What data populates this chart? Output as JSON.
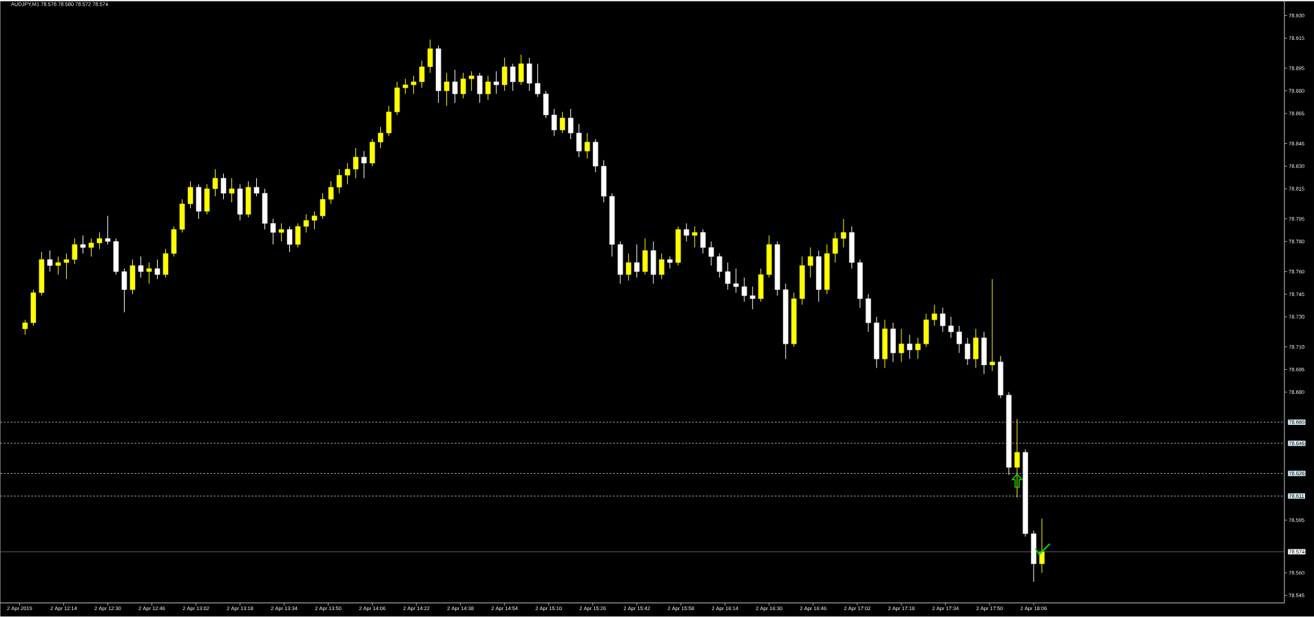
{
  "chart_data": {
    "type": "candlestick",
    "title": "AUDJPY,M1 78.578 78.580 78.572 78.574",
    "x": [
      "2019-04-02T12:00",
      "2019-04-02T12:03",
      "2019-04-02T12:06",
      "2019-04-02T12:09",
      "2019-04-02T12:12",
      "2019-04-02T12:15",
      "2019-04-02T12:18",
      "2019-04-02T12:21",
      "2019-04-02T12:24",
      "2019-04-02T12:27",
      "2019-04-02T12:30",
      "2019-04-02T12:33",
      "2019-04-02T12:36",
      "2019-04-02T12:39",
      "2019-04-02T12:42",
      "2019-04-02T12:45",
      "2019-04-02T12:48",
      "2019-04-02T12:51",
      "2019-04-02T12:54",
      "2019-04-02T12:57",
      "2019-04-02T13:00",
      "2019-04-02T13:03",
      "2019-04-02T13:06",
      "2019-04-02T13:09",
      "2019-04-02T13:12",
      "2019-04-02T13:15",
      "2019-04-02T13:18",
      "2019-04-02T13:21",
      "2019-04-02T13:24",
      "2019-04-02T13:27",
      "2019-04-02T13:30",
      "2019-04-02T13:33",
      "2019-04-02T13:36",
      "2019-04-02T13:39",
      "2019-04-02T13:42",
      "2019-04-02T13:45",
      "2019-04-02T13:48",
      "2019-04-02T13:51",
      "2019-04-02T13:54",
      "2019-04-02T13:57",
      "2019-04-02T14:00",
      "2019-04-02T14:03",
      "2019-04-02T14:06",
      "2019-04-02T14:09",
      "2019-04-02T14:12",
      "2019-04-02T14:15",
      "2019-04-02T14:18",
      "2019-04-02T14:21",
      "2019-04-02T14:24",
      "2019-04-02T14:27",
      "2019-04-02T14:30",
      "2019-04-02T14:33",
      "2019-04-02T14:36",
      "2019-04-02T14:39",
      "2019-04-02T14:42",
      "2019-04-02T14:45",
      "2019-04-02T14:48",
      "2019-04-02T14:51",
      "2019-04-02T14:54",
      "2019-04-02T14:57",
      "2019-04-02T15:00",
      "2019-04-02T15:03",
      "2019-04-02T15:06",
      "2019-04-02T15:09",
      "2019-04-02T15:12",
      "2019-04-02T15:15",
      "2019-04-02T15:18",
      "2019-04-02T15:21",
      "2019-04-02T15:24",
      "2019-04-02T15:27",
      "2019-04-02T15:30",
      "2019-04-02T15:33",
      "2019-04-02T15:36",
      "2019-04-02T15:39",
      "2019-04-02T15:42",
      "2019-04-02T15:45",
      "2019-04-02T15:48",
      "2019-04-02T15:51",
      "2019-04-02T15:54",
      "2019-04-02T15:57",
      "2019-04-02T16:00",
      "2019-04-02T16:03",
      "2019-04-02T16:06",
      "2019-04-02T16:09",
      "2019-04-02T16:12",
      "2019-04-02T16:15",
      "2019-04-02T16:18",
      "2019-04-02T16:21",
      "2019-04-02T16:24",
      "2019-04-02T16:27",
      "2019-04-02T16:30",
      "2019-04-02T16:33",
      "2019-04-02T16:36",
      "2019-04-02T16:39",
      "2019-04-02T16:42",
      "2019-04-02T16:45",
      "2019-04-02T16:48",
      "2019-04-02T16:51",
      "2019-04-02T16:54",
      "2019-04-02T16:57",
      "2019-04-02T17:00",
      "2019-04-02T17:03",
      "2019-04-02T17:06",
      "2019-04-02T17:09",
      "2019-04-02T17:12",
      "2019-04-02T17:15",
      "2019-04-02T17:18",
      "2019-04-02T17:21",
      "2019-04-02T17:24",
      "2019-04-02T17:27",
      "2019-04-02T17:30",
      "2019-04-02T17:33",
      "2019-04-02T17:36",
      "2019-04-02T17:39",
      "2019-04-02T17:42",
      "2019-04-02T17:45",
      "2019-04-02T17:48",
      "2019-04-02T17:51",
      "2019-04-02T17:54",
      "2019-04-02T17:57",
      "2019-04-02T18:00",
      "2019-04-02T18:03",
      "2019-04-02T18:06",
      "2019-04-02T18:09"
    ],
    "ohlc": [
      [
        78.722,
        78.728,
        78.718,
        78.726
      ],
      [
        78.726,
        78.748,
        78.724,
        78.746
      ],
      [
        78.746,
        78.773,
        78.744,
        78.768
      ],
      [
        78.768,
        78.774,
        78.76,
        78.764
      ],
      [
        78.764,
        78.77,
        78.758,
        78.766
      ],
      [
        78.766,
        78.772,
        78.755,
        78.768
      ],
      [
        78.768,
        78.782,
        78.765,
        78.778
      ],
      [
        78.778,
        78.784,
        78.772,
        78.776
      ],
      [
        78.776,
        78.782,
        78.77,
        78.779
      ],
      [
        78.779,
        78.786,
        78.775,
        78.782
      ],
      [
        78.782,
        78.797,
        78.778,
        78.78
      ],
      [
        78.78,
        78.782,
        78.758,
        78.76
      ],
      [
        78.76,
        78.762,
        78.733,
        78.748
      ],
      [
        78.748,
        78.768,
        78.745,
        78.764
      ],
      [
        78.764,
        78.77,
        78.756,
        78.76
      ],
      [
        78.76,
        78.766,
        78.752,
        78.762
      ],
      [
        78.762,
        78.768,
        78.755,
        78.758
      ],
      [
        78.758,
        78.775,
        78.756,
        78.772
      ],
      [
        78.772,
        78.79,
        78.77,
        78.788
      ],
      [
        78.788,
        78.808,
        78.786,
        78.805
      ],
      [
        78.805,
        78.82,
        78.802,
        78.816
      ],
      [
        78.816,
        78.818,
        78.795,
        78.8
      ],
      [
        78.8,
        78.818,
        78.798,
        78.815
      ],
      [
        78.815,
        78.828,
        78.81,
        78.822
      ],
      [
        78.822,
        78.825,
        78.808,
        78.812
      ],
      [
        78.812,
        78.822,
        78.806,
        78.815
      ],
      [
        78.815,
        78.818,
        78.794,
        78.798
      ],
      [
        78.798,
        78.82,
        78.796,
        78.816
      ],
      [
        78.816,
        78.822,
        78.81,
        78.812
      ],
      [
        78.812,
        78.815,
        78.788,
        78.792
      ],
      [
        78.792,
        78.795,
        78.778,
        78.786
      ],
      [
        78.786,
        78.792,
        78.78,
        78.788
      ],
      [
        78.788,
        78.79,
        78.773,
        78.778
      ],
      [
        78.778,
        78.792,
        78.776,
        78.79
      ],
      [
        78.79,
        78.798,
        78.786,
        78.794
      ],
      [
        78.794,
        78.8,
        78.788,
        78.797
      ],
      [
        78.797,
        78.812,
        78.795,
        78.808
      ],
      [
        78.808,
        78.82,
        78.805,
        78.816
      ],
      [
        78.816,
        78.828,
        78.812,
        78.824
      ],
      [
        78.824,
        78.832,
        78.818,
        78.828
      ],
      [
        78.828,
        78.842,
        78.822,
        78.836
      ],
      [
        78.836,
        78.84,
        78.822,
        78.832
      ],
      [
        78.832,
        78.848,
        78.83,
        78.846
      ],
      [
        78.846,
        78.856,
        78.842,
        78.852
      ],
      [
        78.852,
        78.87,
        78.85,
        78.866
      ],
      [
        78.866,
        78.886,
        78.864,
        78.882
      ],
      [
        78.882,
        78.888,
        78.878,
        78.884
      ],
      [
        78.884,
        78.89,
        78.878,
        78.886
      ],
      [
        78.886,
        78.9,
        78.882,
        78.896
      ],
      [
        78.896,
        78.914,
        78.892,
        78.908
      ],
      [
        78.908,
        78.91,
        78.872,
        78.88
      ],
      [
        78.88,
        78.892,
        78.87,
        78.886
      ],
      [
        78.886,
        78.894,
        78.872,
        78.878
      ],
      [
        78.878,
        78.892,
        78.875,
        78.888
      ],
      [
        78.888,
        78.893,
        78.88,
        78.89
      ],
      [
        78.89,
        78.892,
        78.872,
        78.878
      ],
      [
        78.878,
        78.89,
        78.874,
        78.886
      ],
      [
        78.886,
        78.893,
        78.878,
        78.884
      ],
      [
        78.884,
        78.902,
        78.88,
        78.896
      ],
      [
        78.896,
        78.898,
        78.88,
        78.886
      ],
      [
        78.886,
        78.904,
        78.884,
        78.898
      ],
      [
        78.898,
        78.902,
        78.88,
        78.885
      ],
      [
        78.885,
        78.898,
        78.876,
        78.878
      ],
      [
        78.878,
        78.88,
        78.862,
        78.864
      ],
      [
        78.864,
        78.868,
        78.85,
        78.854
      ],
      [
        78.854,
        78.866,
        78.852,
        78.862
      ],
      [
        78.862,
        78.868,
        78.848,
        78.852
      ],
      [
        78.852,
        78.858,
        78.836,
        78.84
      ],
      [
        78.84,
        78.852,
        78.835,
        78.846
      ],
      [
        78.846,
        78.848,
        78.826,
        78.83
      ],
      [
        78.83,
        78.834,
        78.806,
        78.81
      ],
      [
        78.81,
        78.812,
        78.77,
        78.778
      ],
      [
        78.778,
        78.78,
        78.752,
        78.758
      ],
      [
        78.758,
        78.772,
        78.754,
        78.766
      ],
      [
        78.766,
        78.778,
        78.756,
        78.76
      ],
      [
        78.76,
        78.782,
        78.758,
        78.774
      ],
      [
        78.774,
        78.78,
        78.752,
        78.758
      ],
      [
        78.758,
        78.772,
        78.755,
        78.768
      ],
      [
        78.768,
        78.77,
        78.762,
        78.766
      ],
      [
        78.766,
        78.79,
        78.764,
        78.788
      ],
      [
        78.788,
        78.792,
        78.78,
        78.784
      ],
      [
        78.784,
        78.79,
        78.776,
        78.786
      ],
      [
        78.786,
        78.788,
        78.772,
        78.776
      ],
      [
        78.776,
        78.78,
        78.764,
        78.77
      ],
      [
        78.77,
        78.772,
        78.756,
        78.76
      ],
      [
        78.76,
        78.766,
        78.748,
        78.752
      ],
      [
        78.752,
        78.762,
        78.746,
        78.75
      ],
      [
        78.75,
        78.756,
        78.74,
        78.744
      ],
      [
        78.744,
        78.75,
        78.735,
        78.742
      ],
      [
        78.742,
        78.762,
        78.74,
        78.758
      ],
      [
        78.758,
        78.784,
        78.756,
        78.778
      ],
      [
        78.778,
        78.78,
        78.744,
        78.748
      ],
      [
        78.748,
        78.752,
        78.702,
        78.712
      ],
      [
        78.712,
        78.746,
        78.71,
        78.742
      ],
      [
        78.742,
        78.77,
        78.738,
        78.764
      ],
      [
        78.764,
        78.776,
        78.756,
        78.77
      ],
      [
        78.77,
        78.774,
        78.74,
        78.748
      ],
      [
        78.748,
        78.778,
        78.745,
        78.772
      ],
      [
        78.772,
        78.786,
        78.766,
        78.782
      ],
      [
        78.782,
        78.795,
        78.776,
        78.786
      ],
      [
        78.786,
        78.79,
        78.762,
        78.766
      ],
      [
        78.766,
        78.768,
        78.736,
        78.742
      ],
      [
        78.742,
        78.745,
        78.72,
        78.726
      ],
      [
        78.726,
        78.73,
        78.696,
        78.702
      ],
      [
        78.702,
        78.728,
        78.696,
        78.722
      ],
      [
        78.722,
        78.726,
        78.7,
        78.706
      ],
      [
        78.706,
        78.722,
        78.7,
        78.712
      ],
      [
        78.712,
        78.718,
        78.702,
        78.708
      ],
      [
        78.708,
        78.716,
        78.702,
        78.712
      ],
      [
        78.712,
        78.732,
        78.71,
        78.728
      ],
      [
        78.728,
        78.738,
        78.724,
        78.732
      ],
      [
        78.732,
        78.736,
        78.72,
        78.724
      ],
      [
        78.724,
        78.73,
        78.716,
        78.72
      ],
      [
        78.72,
        78.724,
        78.706,
        78.712
      ],
      [
        78.712,
        78.716,
        78.698,
        78.702
      ],
      [
        78.702,
        78.722,
        78.696,
        78.716
      ],
      [
        78.716,
        78.72,
        78.692,
        78.698
      ],
      [
        78.698,
        78.755,
        78.694,
        78.7
      ],
      [
        78.7,
        78.704,
        78.676,
        78.678
      ],
      [
        78.678,
        78.68,
        78.625,
        78.63
      ],
      [
        78.63,
        78.662,
        78.61,
        78.64
      ],
      [
        78.64,
        78.642,
        78.584,
        78.586
      ],
      [
        78.586,
        78.588,
        78.554,
        78.566
      ],
      [
        78.566,
        78.596,
        78.56,
        78.574
      ]
    ],
    "colors": [
      "#ffff00",
      "#ffff00",
      "#ffff00",
      "#ffffff",
      "#ffff00",
      "#ffff00",
      "#ffff00",
      "#ffffff",
      "#ffff00",
      "#ffff00",
      "#ffffff",
      "#ffffff",
      "#ffffff",
      "#ffff00",
      "#ffffff",
      "#ffff00",
      "#ffffff",
      "#ffff00",
      "#ffff00",
      "#ffff00",
      "#ffff00",
      "#ffffff",
      "#ffff00",
      "#ffff00",
      "#ffffff",
      "#ffff00",
      "#ffffff",
      "#ffff00",
      "#ffffff",
      "#ffffff",
      "#ffffff",
      "#ffff00",
      "#ffffff",
      "#ffff00",
      "#ffff00",
      "#ffff00",
      "#ffff00",
      "#ffff00",
      "#ffff00",
      "#ffff00",
      "#ffff00",
      "#ffffff",
      "#ffff00",
      "#ffff00",
      "#ffff00",
      "#ffff00",
      "#ffff00",
      "#ffff00",
      "#ffff00",
      "#ffff00",
      "#ffffff",
      "#ffff00",
      "#ffffff",
      "#ffff00",
      "#ffff00",
      "#ffffff",
      "#ffff00",
      "#ffffff",
      "#ffff00",
      "#ffffff",
      "#ffff00",
      "#ffffff",
      "#ffffff",
      "#ffffff",
      "#ffffff",
      "#ffff00",
      "#ffffff",
      "#ffffff",
      "#ffff00",
      "#ffffff",
      "#ffffff",
      "#ffffff",
      "#ffffff",
      "#ffff00",
      "#ffffff",
      "#ffff00",
      "#ffffff",
      "#ffff00",
      "#ffffff",
      "#ffff00",
      "#ffffff",
      "#ffff00",
      "#ffffff",
      "#ffffff",
      "#ffffff",
      "#ffffff",
      "#ffffff",
      "#ffffff",
      "#ffffff",
      "#ffff00",
      "#ffff00",
      "#ffffff",
      "#ffffff",
      "#ffff00",
      "#ffff00",
      "#ffff00",
      "#ffffff",
      "#ffff00",
      "#ffff00",
      "#ffff00",
      "#ffffff",
      "#ffffff",
      "#ffffff",
      "#ffffff",
      "#ffff00",
      "#ffffff",
      "#ffff00",
      "#ffffff",
      "#ffff00",
      "#ffff00",
      "#ffff00",
      "#ffffff",
      "#ffffff",
      "#ffffff",
      "#ffffff",
      "#ffff00",
      "#ffffff",
      "#ffff00",
      "#ffffff",
      "#ffffff",
      "#ffff00",
      "#ffffff",
      "#ffffff",
      "#ffff00"
    ],
    "xlim": [
      "2019-04-02T11:51",
      "2019-04-02T19:37"
    ],
    "ylim": [
      78.54,
      78.9395
    ],
    "xticks": [
      {
        "value": "2019-04-02T11:58",
        "label": "2 Apr 2019"
      },
      {
        "value": "2019-04-02T12:14",
        "label": "2 Apr 12:14"
      },
      {
        "value": "2019-04-02T12:30",
        "label": "2 Apr 12:30"
      },
      {
        "value": "2019-04-02T12:46",
        "label": "2 Apr 12:46"
      },
      {
        "value": "2019-04-02T13:02",
        "label": "2 Apr 13:02"
      },
      {
        "value": "2019-04-02T13:18",
        "label": "2 Apr 13:18"
      },
      {
        "value": "2019-04-02T13:34",
        "label": "2 Apr 13:34"
      },
      {
        "value": "2019-04-02T13:50",
        "label": "2 Apr 13:50"
      },
      {
        "value": "2019-04-02T14:06",
        "label": "2 Apr 14:06"
      },
      {
        "value": "2019-04-02T14:22",
        "label": "2 Apr 14:22"
      },
      {
        "value": "2019-04-02T14:38",
        "label": "2 Apr 14:38"
      },
      {
        "value": "2019-04-02T14:54",
        "label": "2 Apr 14:54"
      },
      {
        "value": "2019-04-02T15:10",
        "label": "2 Apr 15:10"
      },
      {
        "value": "2019-04-02T15:26",
        "label": "2 Apr 15:26"
      },
      {
        "value": "2019-04-02T15:42",
        "label": "2 Apr 15:42"
      },
      {
        "value": "2019-04-02T15:58",
        "label": "2 Apr 15:58"
      },
      {
        "value": "2019-04-02T16:14",
        "label": "2 Apr 16:14"
      },
      {
        "value": "2019-04-02T16:30",
        "label": "2 Apr 16:30"
      },
      {
        "value": "2019-04-02T16:46",
        "label": "2 Apr 16:46"
      },
      {
        "value": "2019-04-02T17:02",
        "label": "2 Apr 17:02"
      },
      {
        "value": "2019-04-02T17:18",
        "label": "2 Apr 17:18"
      },
      {
        "value": "2019-04-02T17:34",
        "label": "2 Apr 17:34"
      },
      {
        "value": "2019-04-02T17:50",
        "label": "2 Apr 17:50"
      },
      {
        "value": "2019-04-02T18:06",
        "label": "2 Apr 18:06"
      }
    ],
    "yticks": [
      {
        "value": 78.93,
        "label": "78.930"
      },
      {
        "value": 78.915,
        "label": "78.915"
      },
      {
        "value": 78.895,
        "label": "78.895"
      },
      {
        "value": 78.88,
        "label": "78.880"
      },
      {
        "value": 78.865,
        "label": "78.865"
      },
      {
        "value": 78.845,
        "label": "78.845"
      },
      {
        "value": 78.83,
        "label": "78.830"
      },
      {
        "value": 78.815,
        "label": "78.815"
      },
      {
        "value": 78.795,
        "label": "78.795"
      },
      {
        "value": 78.78,
        "label": "78.780"
      },
      {
        "value": 78.76,
        "label": "78.760"
      },
      {
        "value": 78.745,
        "label": "78.745"
      },
      {
        "value": 78.73,
        "label": "78.730"
      },
      {
        "value": 78.71,
        "label": "78.710"
      },
      {
        "value": 78.695,
        "label": "78.695"
      },
      {
        "value": 78.68,
        "label": "78.680"
      },
      {
        "value": 78.595,
        "label": "78.595"
      },
      {
        "value": 78.56,
        "label": "78.560"
      },
      {
        "value": 78.545,
        "label": "78.545"
      }
    ],
    "ref_lines": [
      {
        "axis": "y",
        "value": 78.66,
        "label": "78.660",
        "color": "#ffffff",
        "line_style": "dashed"
      },
      {
        "axis": "y",
        "value": 78.646,
        "label": "78.646",
        "color": "#ffffff",
        "line_style": "dashed"
      },
      {
        "axis": "y",
        "value": 78.626,
        "label": "78.626",
        "color": "#ffffff",
        "line_style": "dashed"
      },
      {
        "axis": "y",
        "value": 78.611,
        "label": "78.611",
        "color": "#ffffff",
        "line_style": "dashed"
      },
      {
        "axis": "y",
        "value": 78.574,
        "label": "78.574",
        "color": "#8c8c8c",
        "line_style": "solid"
      }
    ]
  }
}
